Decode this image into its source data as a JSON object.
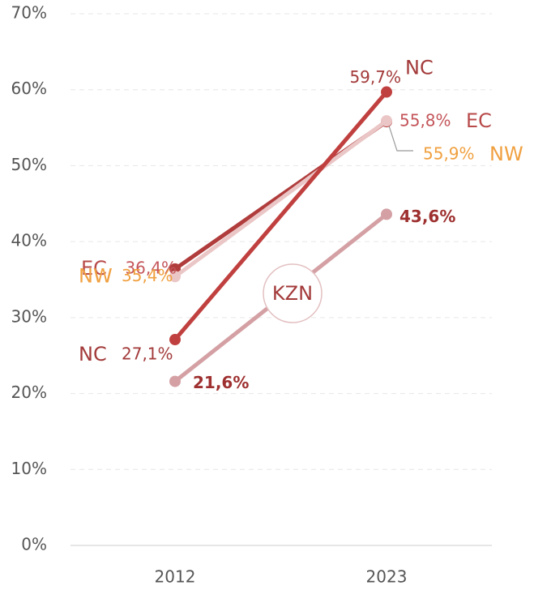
{
  "chart_data": {
    "type": "line",
    "categories": [
      "2012",
      "2023"
    ],
    "series": [
      {
        "name": "EC",
        "color": "#b03c3c",
        "label_color": "#c4555a",
        "name_color": "#b84a4a",
        "values": [
          36.4,
          55.8
        ],
        "value_labels": [
          "36,4%",
          "55,8%"
        ]
      },
      {
        "name": "NW",
        "color": "#ebc6c6",
        "label_color": "#f0a040",
        "name_color": "#f0a040",
        "values": [
          35.4,
          55.9
        ],
        "value_labels": [
          "35,4%",
          "55,9%"
        ]
      },
      {
        "name": "NC",
        "color": "#c0403f",
        "label_color": "#a33a3a",
        "name_color": "#a33a3a",
        "values": [
          27.1,
          59.7
        ],
        "value_labels": [
          "27,1%",
          "59,7%"
        ]
      },
      {
        "name": "KZN",
        "color": "#d4a0a4",
        "label_color": "#9e3030",
        "name_color": "#a33a3a",
        "values": [
          21.6,
          43.6
        ],
        "value_labels": [
          "21,6%",
          "43,6%"
        ]
      }
    ],
    "ylim": [
      0,
      70
    ],
    "yticks": [
      {
        "value": 0,
        "label": "0%"
      },
      {
        "value": 10,
        "label": "10%"
      },
      {
        "value": 20,
        "label": "20%"
      },
      {
        "value": 30,
        "label": "30%"
      },
      {
        "value": 40,
        "label": "40%"
      },
      {
        "value": 50,
        "label": "50%"
      },
      {
        "value": 60,
        "label": "60%"
      },
      {
        "value": 70,
        "label": "70%"
      }
    ],
    "grid": true
  }
}
